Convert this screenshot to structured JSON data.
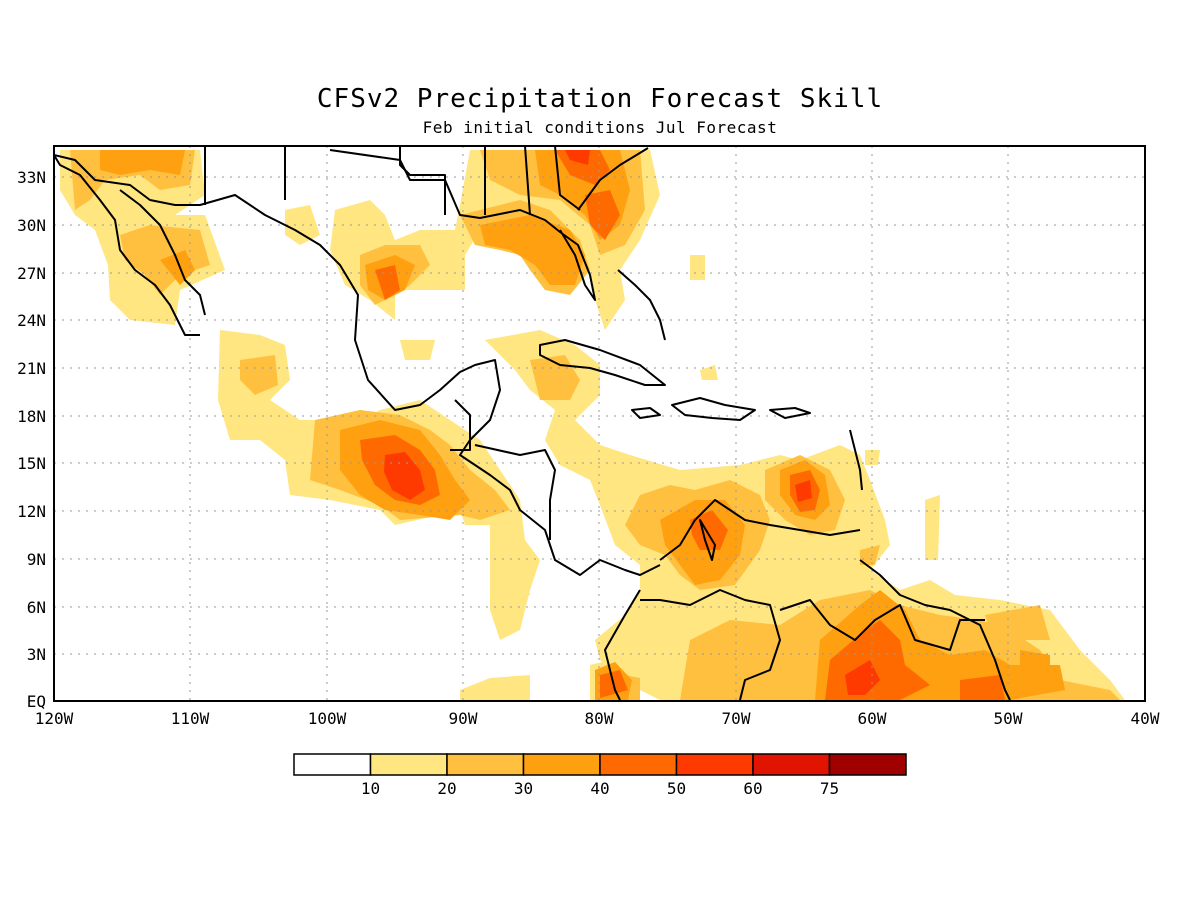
{
  "title": "CFSv2 Precipitation Forecast Skill",
  "subtitle": "Feb initial conditions  Jul Forecast",
  "map": {
    "lon_range": [
      -120,
      -40
    ],
    "lat_range": [
      0,
      35
    ],
    "lat_labels": [
      "EQ",
      "3N",
      "6N",
      "9N",
      "12N",
      "15N",
      "18N",
      "21N",
      "24N",
      "27N",
      "30N",
      "33N"
    ],
    "lon_labels": [
      "120W",
      "110W",
      "100W",
      "90W",
      "80W",
      "70W",
      "60W",
      "50W",
      "40W"
    ],
    "grid": "dotted",
    "coastline_color": "#000000"
  },
  "colorbar": {
    "labels": [
      "10",
      "20",
      "30",
      "40",
      "50",
      "60",
      "75"
    ],
    "colors": [
      "#ffffff",
      "#ffe680",
      "#ffc040",
      "#ffa010",
      "#ff6a00",
      "#ff3a00",
      "#e01400",
      "#a00000"
    ]
  }
}
